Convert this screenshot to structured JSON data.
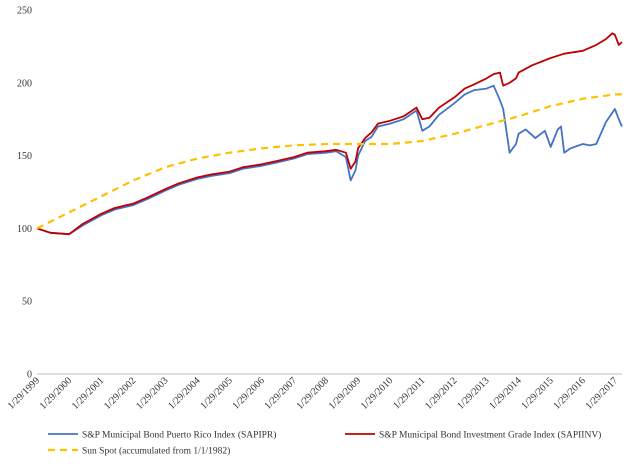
{
  "chart_data": {
    "type": "line",
    "title": "",
    "xlabel": "",
    "ylabel": "",
    "ylim": [
      0,
      250
    ],
    "yticks": [
      0,
      50,
      100,
      150,
      200,
      250
    ],
    "grid": false,
    "legend_position": "bottom",
    "x_tick_labels": [
      "1/29/1999",
      "1/29/2000",
      "1/29/2001",
      "1/29/2002",
      "1/29/2003",
      "1/29/2004",
      "1/29/2005",
      "1/29/2006",
      "1/29/2007",
      "1/29/2008",
      "1/29/2009",
      "1/29/2010",
      "1/29/2011",
      "1/29/2012",
      "1/29/2013",
      "1/29/2014",
      "1/29/2015",
      "1/29/2016",
      "1/29/2017"
    ],
    "x_range": [
      1999.08,
      2017.3
    ],
    "series": [
      {
        "name": "S&P Municipal Bond Puerto Rico Index (SAPIPR)",
        "color": "#4472c4",
        "style": "solid",
        "x": [
          1999.08,
          1999.5,
          2000.08,
          2000.5,
          2001.08,
          2001.5,
          2002.08,
          2002.5,
          2003.08,
          2003.5,
          2004.08,
          2004.5,
          2005.08,
          2005.5,
          2006.08,
          2006.5,
          2007.08,
          2007.5,
          2008.08,
          2008.4,
          2008.7,
          2008.85,
          2009.0,
          2009.08,
          2009.3,
          2009.5,
          2009.7,
          2010.08,
          2010.5,
          2010.9,
          2011.08,
          2011.3,
          2011.6,
          2012.08,
          2012.4,
          2012.7,
          2013.08,
          2013.3,
          2013.5,
          2013.6,
          2013.8,
          2014.0,
          2014.08,
          2014.3,
          2014.6,
          2014.9,
          2015.08,
          2015.3,
          2015.4,
          2015.5,
          2015.7,
          2016.08,
          2016.3,
          2016.5,
          2016.8,
          2017.08,
          2017.2,
          2017.3
        ],
        "y": [
          100,
          97,
          96,
          102,
          109,
          113,
          116,
          120,
          126,
          130,
          134,
          136,
          138,
          141,
          143,
          145,
          148,
          151,
          152,
          153,
          149,
          133,
          140,
          150,
          160,
          163,
          170,
          172,
          175,
          181,
          167,
          170,
          178,
          186,
          192,
          195,
          196,
          198,
          188,
          182,
          152,
          158,
          165,
          168,
          162,
          167,
          156,
          168,
          170,
          152,
          155,
          158,
          157,
          158,
          173,
          182,
          175,
          170
        ]
      },
      {
        "name": "S&P Municipal Bond Investment Grade Index (SAPIINV)",
        "color": "#c00000",
        "style": "solid",
        "x": [
          1999.08,
          1999.5,
          2000.08,
          2000.5,
          2001.08,
          2001.5,
          2002.08,
          2002.5,
          2003.08,
          2003.5,
          2004.08,
          2004.5,
          2005.08,
          2005.5,
          2006.08,
          2006.5,
          2007.08,
          2007.5,
          2008.08,
          2008.4,
          2008.7,
          2008.85,
          2009.0,
          2009.08,
          2009.3,
          2009.5,
          2009.7,
          2010.08,
          2010.5,
          2010.9,
          2011.08,
          2011.3,
          2011.6,
          2012.08,
          2012.4,
          2012.7,
          2013.08,
          2013.3,
          2013.5,
          2013.6,
          2013.8,
          2014.0,
          2014.08,
          2014.5,
          2015.08,
          2015.5,
          2016.08,
          2016.5,
          2016.8,
          2017.0,
          2017.08,
          2017.2,
          2017.3
        ],
        "y": [
          100,
          97,
          96,
          103,
          110,
          114,
          117,
          121,
          127,
          131,
          135,
          137,
          139,
          142,
          144,
          146,
          149,
          152,
          153,
          154,
          152,
          141,
          146,
          155,
          162,
          166,
          172,
          174,
          177,
          183,
          175,
          176,
          183,
          190,
          196,
          199,
          203,
          206,
          207,
          198,
          200,
          203,
          207,
          212,
          217,
          220,
          222,
          226,
          230,
          234,
          233,
          226,
          228
        ]
      },
      {
        "name": "Sun Spot (accumulated from 1/1/1982)",
        "color": "#ffc000",
        "style": "dashed",
        "x": [
          1999.08,
          2000.08,
          2001.08,
          2002.08,
          2003.08,
          2004.08,
          2005.08,
          2006.08,
          2007.08,
          2008.08,
          2009.08,
          2010.08,
          2011.08,
          2012.08,
          2013.08,
          2014.08,
          2015.08,
          2016.08,
          2017.08,
          2017.3
        ],
        "y": [
          100,
          111,
          122,
          133,
          142,
          148,
          152,
          155,
          157,
          158,
          158,
          158,
          160,
          165,
          171,
          177,
          184,
          189,
          192,
          192
        ]
      }
    ]
  }
}
